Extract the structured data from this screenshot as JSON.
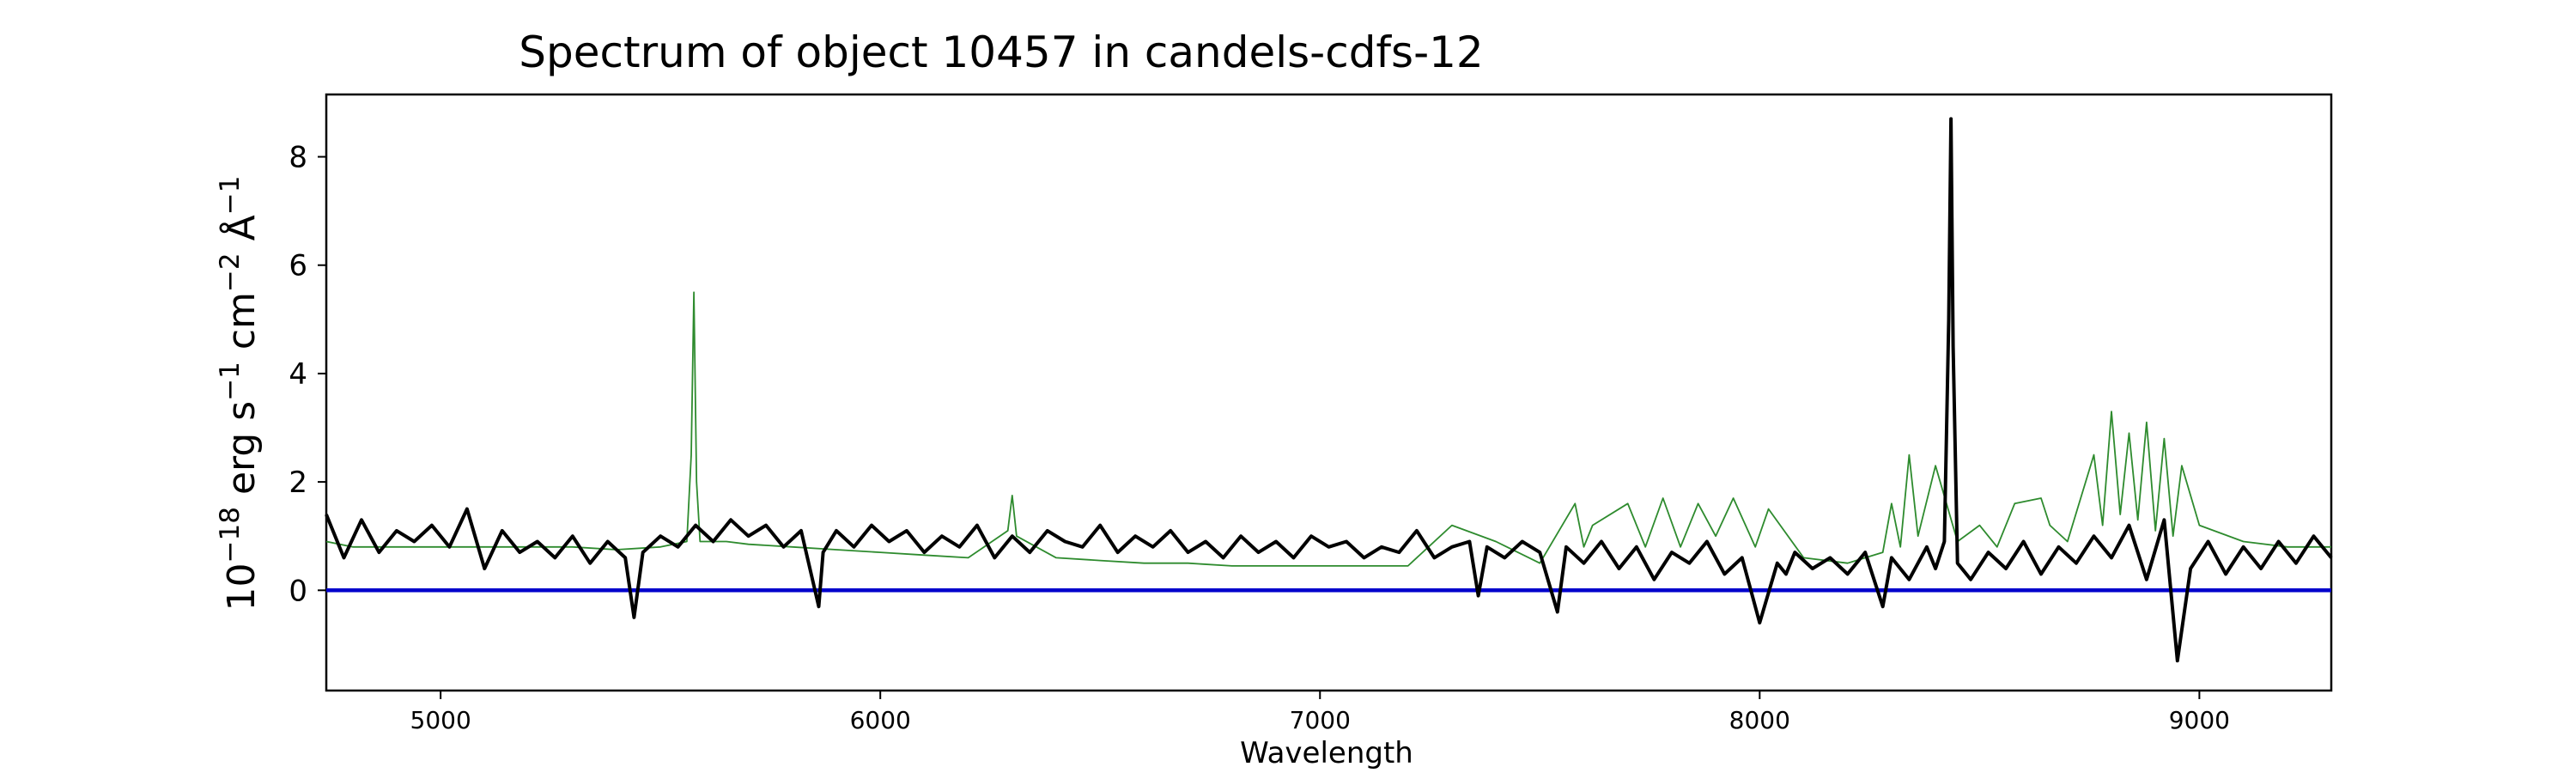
{
  "chart_data": {
    "type": "line",
    "title": "Spectrum of object 10457 in candels-cdfs-12",
    "xlabel": "Wavelength",
    "ylabel": {
      "prefix": "10",
      "exp1": "−18",
      "unit1": " erg s",
      "exp2": "−1",
      "unit2": " cm",
      "exp3": "−2",
      "unit3": " Å",
      "exp4": "−1"
    },
    "xlim": [
      4740,
      9300
    ],
    "ylim": [
      -1.85,
      9.15
    ],
    "xticks": [
      5000,
      6000,
      7000,
      8000,
      9000
    ],
    "yticks": [
      0,
      2,
      4,
      6,
      8
    ],
    "grid": false,
    "colors": {
      "flux": "#000000",
      "model": "#2e8b2e",
      "zero": "#0000cc"
    },
    "series": [
      {
        "role": "flux",
        "description": "observed spectrum (black, noisy)",
        "x": [
          4740,
          4780,
          4820,
          4860,
          4900,
          4940,
          4980,
          5020,
          5060,
          5100,
          5140,
          5180,
          5220,
          5260,
          5300,
          5340,
          5380,
          5420,
          5440,
          5460,
          5500,
          5540,
          5580,
          5620,
          5660,
          5700,
          5740,
          5780,
          5820,
          5860,
          5870,
          5900,
          5940,
          5980,
          6020,
          6060,
          6100,
          6140,
          6180,
          6220,
          6260,
          6300,
          6340,
          6380,
          6420,
          6460,
          6500,
          6540,
          6580,
          6620,
          6660,
          6700,
          6740,
          6780,
          6820,
          6860,
          6900,
          6940,
          6980,
          7020,
          7060,
          7100,
          7140,
          7180,
          7220,
          7260,
          7300,
          7340,
          7360,
          7380,
          7420,
          7460,
          7500,
          7540,
          7560,
          7600,
          7640,
          7680,
          7720,
          7760,
          7800,
          7840,
          7880,
          7920,
          7960,
          8000,
          8040,
          8060,
          8080,
          8120,
          8160,
          8200,
          8240,
          8280,
          8300,
          8340,
          8380,
          8400,
          8420,
          8430,
          8435,
          8440,
          8450,
          8480,
          8520,
          8560,
          8600,
          8640,
          8680,
          8720,
          8760,
          8800,
          8840,
          8880,
          8920,
          8950,
          8980,
          9020,
          9060,
          9100,
          9140,
          9180,
          9220,
          9260,
          9300
        ],
        "y": [
          1.4,
          0.6,
          1.3,
          0.7,
          1.1,
          0.9,
          1.2,
          0.8,
          1.5,
          0.4,
          1.1,
          0.7,
          0.9,
          0.6,
          1.0,
          0.5,
          0.9,
          0.6,
          -0.5,
          0.7,
          1.0,
          0.8,
          1.2,
          0.9,
          1.3,
          1.0,
          1.2,
          0.8,
          1.1,
          -0.3,
          0.7,
          1.1,
          0.8,
          1.2,
          0.9,
          1.1,
          0.7,
          1.0,
          0.8,
          1.2,
          0.6,
          1.0,
          0.7,
          1.1,
          0.9,
          0.8,
          1.2,
          0.7,
          1.0,
          0.8,
          1.1,
          0.7,
          0.9,
          0.6,
          1.0,
          0.7,
          0.9,
          0.6,
          1.0,
          0.8,
          0.9,
          0.6,
          0.8,
          0.7,
          1.1,
          0.6,
          0.8,
          0.9,
          -0.1,
          0.8,
          0.6,
          0.9,
          0.7,
          -0.4,
          0.8,
          0.5,
          0.9,
          0.4,
          0.8,
          0.2,
          0.7,
          0.5,
          0.9,
          0.3,
          0.6,
          -0.6,
          0.5,
          0.3,
          0.7,
          0.4,
          0.6,
          0.3,
          0.7,
          -0.3,
          0.6,
          0.2,
          0.8,
          0.4,
          0.9,
          5.0,
          8.7,
          4.5,
          0.5,
          0.2,
          0.7,
          0.4,
          0.9,
          0.3,
          0.8,
          0.5,
          1.0,
          0.6,
          1.2,
          0.2,
          1.3,
          -1.3,
          0.4,
          0.9,
          0.3,
          0.8,
          0.4,
          0.9,
          0.5,
          1.0,
          0.6
        ]
      },
      {
        "role": "model",
        "description": "model / sky spectrum (green, thin)",
        "x": [
          4740,
          4800,
          4900,
          5000,
          5100,
          5200,
          5300,
          5400,
          5500,
          5560,
          5570,
          5576,
          5582,
          5590,
          5650,
          5700,
          5800,
          5900,
          6000,
          6100,
          6200,
          6290,
          6300,
          6310,
          6400,
          6500,
          6600,
          6700,
          6800,
          6900,
          7000,
          7100,
          7200,
          7300,
          7400,
          7500,
          7580,
          7600,
          7620,
          7700,
          7740,
          7780,
          7820,
          7860,
          7900,
          7940,
          7990,
          8020,
          8100,
          8200,
          8280,
          8300,
          8320,
          8340,
          8360,
          8400,
          8450,
          8500,
          8540,
          8580,
          8640,
          8660,
          8700,
          8760,
          8780,
          8800,
          8820,
          8840,
          8860,
          8880,
          8900,
          8920,
          8940,
          8960,
          9000,
          9100,
          9200,
          9300
        ],
        "y": [
          0.9,
          0.8,
          0.8,
          0.8,
          0.8,
          0.8,
          0.8,
          0.75,
          0.8,
          0.9,
          2.5,
          5.5,
          2.0,
          0.9,
          0.9,
          0.85,
          0.8,
          0.75,
          0.7,
          0.65,
          0.6,
          1.1,
          1.75,
          1.0,
          0.6,
          0.55,
          0.5,
          0.5,
          0.45,
          0.45,
          0.45,
          0.45,
          0.45,
          1.2,
          0.9,
          0.5,
          1.6,
          0.8,
          1.2,
          1.6,
          0.8,
          1.7,
          0.8,
          1.6,
          1.0,
          1.7,
          0.8,
          1.5,
          0.6,
          0.5,
          0.7,
          1.6,
          0.8,
          2.5,
          1.0,
          2.3,
          0.9,
          1.2,
          0.8,
          1.6,
          1.7,
          1.2,
          0.9,
          2.5,
          1.2,
          3.3,
          1.4,
          2.9,
          1.3,
          3.1,
          1.1,
          2.8,
          1.0,
          2.3,
          1.2,
          0.9,
          0.8,
          0.8
        ]
      },
      {
        "role": "zero",
        "description": "zero reference line (blue)",
        "x": [
          4740,
          9300
        ],
        "y": [
          0,
          0
        ]
      }
    ]
  }
}
